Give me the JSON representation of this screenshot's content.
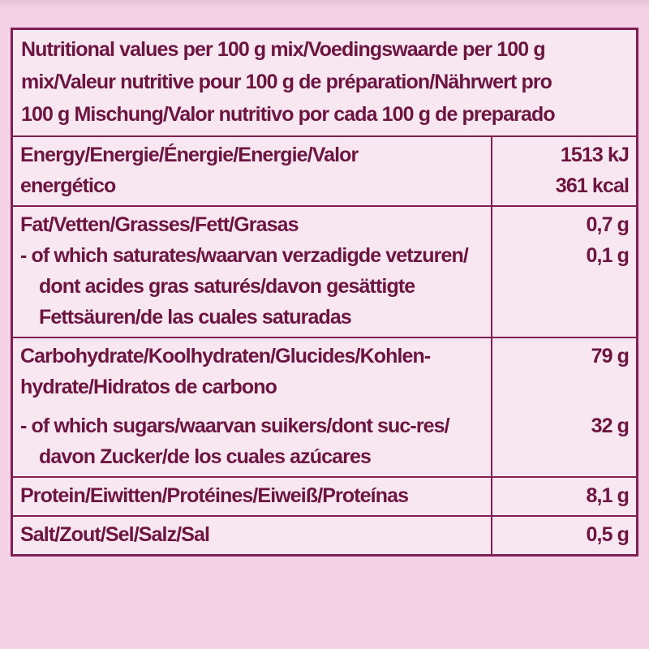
{
  "label_type": "nutrition-facts-table",
  "colors": {
    "page_background": "#f4d1e5",
    "cell_background": "#f8e6f0",
    "text": "#6d1541",
    "border": "#7e2052"
  },
  "table": {
    "header": "Nutritional values per 100 g mix/Voedingswaarde per 100 g mix/Valeur nutritive pour 100 g de préparation/Nährwert pro 100 g Mischung/Valor nutritivo por cada 100 g de preparado",
    "rows": [
      {
        "id": "energy",
        "label": "Energy/Energie/Énergie/Energie/Valor energético",
        "value": "1513 kJ",
        "value2": "361 kcal",
        "sub": false
      },
      {
        "id": "fat",
        "label": "Fat/Vetten/Grasses/Fett/Grasas",
        "value": "0,7 g",
        "sub": false
      },
      {
        "id": "saturates",
        "label": "- of which saturates/waarvan verzadigde vetzuren/dont acides gras saturés/davon gesättigte Fettsäuren/de las cuales saturadas",
        "value": "0,1 g",
        "sub": true
      },
      {
        "id": "carbohydrate",
        "label": "Carbohydrate/Koolhydraten/Glucides/Kohlen-hydrate/Hidratos de carbono",
        "value": "79 g",
        "sub": false
      },
      {
        "id": "sugars",
        "label": "- of which sugars/waarvan suikers/dont suc-res/davon Zucker/de los cuales azúcares",
        "value": "32 g",
        "sub": true
      },
      {
        "id": "protein",
        "label": "Protein/Eiwitten/Protéines/Eiweiß/Proteínas",
        "value": "8,1 g",
        "sub": false
      },
      {
        "id": "salt",
        "label": "Salt/Zout/Sel/Salz/Sal",
        "value": "0,5 g",
        "sub": false
      }
    ]
  }
}
